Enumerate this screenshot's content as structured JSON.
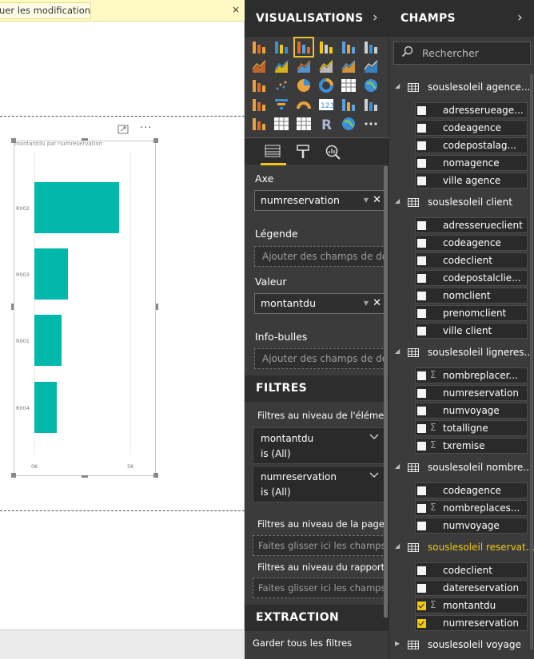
{
  "banner": {
    "text": "uer les modifications",
    "close": "×"
  },
  "visual": {
    "title": "montantdu par numreservation",
    "focus_icon": "focus-mode-icon",
    "more": "···"
  },
  "chart_data": {
    "type": "bar",
    "orientation": "horizontal",
    "title": "montantdu par numreservation",
    "categories": [
      "R002",
      "R003",
      "R001",
      "R004"
    ],
    "values": [
      4400,
      1750,
      1400,
      1150
    ],
    "xticks": [
      "0K",
      "5K"
    ],
    "xlim": [
      0,
      5000
    ],
    "color": "#01b8aa"
  },
  "viz_pane": {
    "title": "VISUALISATIONS",
    "arrow": "›",
    "tabs": [
      "fields-tab-icon",
      "format-paint-icon",
      "analytics-icon"
    ],
    "axe_label": "Axe",
    "axe_value": "numreservation",
    "legende_label": "Légende",
    "legende_placeholder": "Ajouter des champs de don...",
    "valeur_label": "Valeur",
    "valeur_value": "montantdu",
    "infobulles_label": "Info-bulles",
    "infobulles_placeholder": "Ajouter des champs de don...",
    "filtres_title": "FILTRES",
    "filtres_visual_label": "Filtres au niveau de l'éléme...",
    "filter_cards": [
      {
        "field": "montantdu",
        "state": "is (All)"
      },
      {
        "field": "numreservation",
        "state": "is (All)"
      }
    ],
    "filtres_page_label": "Filtres au niveau de la page",
    "filtres_page_placeholder": "Faites glisser ici les champs...",
    "filtres_rapport_label": "Filtres au niveau du rapport",
    "filtres_rapport_placeholder": "Faites glisser ici les champs...",
    "extraction_title": "EXTRACTION",
    "garder_label": "Garder tous les filtres"
  },
  "champs_pane": {
    "title": "CHAMPS",
    "arrow": "›",
    "search_placeholder": "Rechercher",
    "tables": [
      {
        "name": "souslesoleil agence...",
        "expanded": true,
        "selected": false,
        "fields": [
          {
            "name": "adresserueage...",
            "sigma": false,
            "checked": false
          },
          {
            "name": "codeagence",
            "sigma": false,
            "checked": false
          },
          {
            "name": "codepostalag...",
            "sigma": false,
            "checked": false
          },
          {
            "name": "nomagence",
            "sigma": false,
            "checked": false
          },
          {
            "name": "ville agence",
            "sigma": false,
            "checked": false
          }
        ]
      },
      {
        "name": "souslesoleil client",
        "expanded": true,
        "selected": false,
        "fields": [
          {
            "name": "adresserueclient",
            "sigma": false,
            "checked": false
          },
          {
            "name": "codeagence",
            "sigma": false,
            "checked": false
          },
          {
            "name": "codeclient",
            "sigma": false,
            "checked": false
          },
          {
            "name": "codepostalclie...",
            "sigma": false,
            "checked": false
          },
          {
            "name": "nomclient",
            "sigma": false,
            "checked": false
          },
          {
            "name": "prenomclient",
            "sigma": false,
            "checked": false
          },
          {
            "name": "ville client",
            "sigma": false,
            "checked": false
          }
        ]
      },
      {
        "name": "souslesoleil ligneres...",
        "expanded": true,
        "selected": false,
        "fields": [
          {
            "name": "nombreplacer...",
            "sigma": true,
            "checked": false
          },
          {
            "name": "numreservation",
            "sigma": false,
            "checked": false
          },
          {
            "name": "numvoyage",
            "sigma": false,
            "checked": false
          },
          {
            "name": "totalligne",
            "sigma": true,
            "checked": false
          },
          {
            "name": "txremise",
            "sigma": true,
            "checked": false
          }
        ]
      },
      {
        "name": "souslesoleil nombre...",
        "expanded": true,
        "selected": false,
        "fields": [
          {
            "name": "codeagence",
            "sigma": false,
            "checked": false
          },
          {
            "name": "nombreplaces...",
            "sigma": true,
            "checked": false
          },
          {
            "name": "numvoyage",
            "sigma": false,
            "checked": false
          }
        ]
      },
      {
        "name": "souslesoleil reservat...",
        "expanded": true,
        "selected": true,
        "fields": [
          {
            "name": "codeclient",
            "sigma": false,
            "checked": false
          },
          {
            "name": "datereservation",
            "sigma": false,
            "checked": false
          },
          {
            "name": "montantdu",
            "sigma": true,
            "checked": true
          },
          {
            "name": "numreservation",
            "sigma": false,
            "checked": true
          }
        ]
      },
      {
        "name": "souslesoleil voyage",
        "expanded": false,
        "selected": false,
        "fields": []
      }
    ]
  }
}
